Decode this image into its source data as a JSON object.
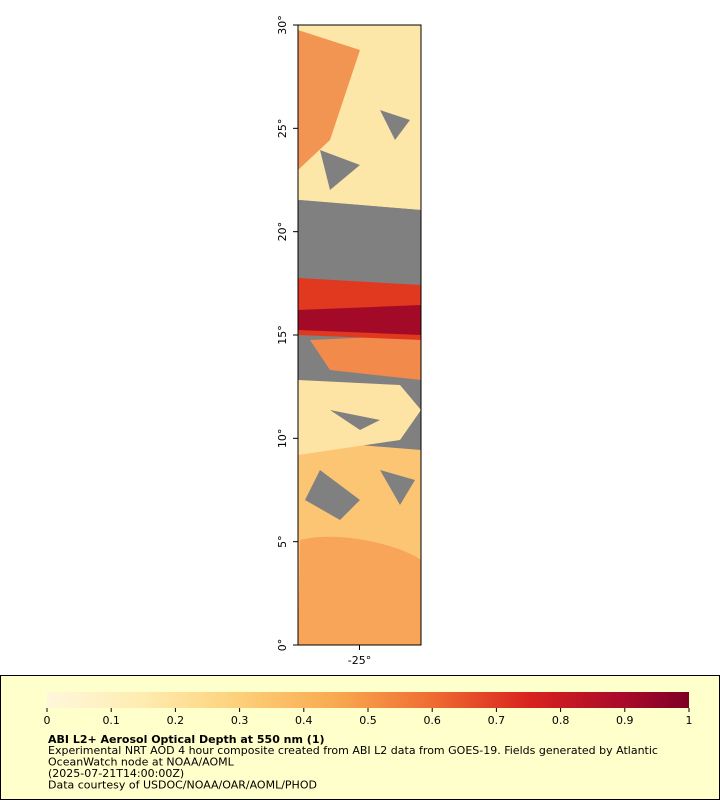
{
  "map": {
    "latlim": [
      0,
      30
    ],
    "lonlim": [
      -26.5,
      -23.5
    ],
    "lat_ticks": [
      {
        "value": 0,
        "label": "0°"
      },
      {
        "value": 5,
        "label": "5°"
      },
      {
        "value": 10,
        "label": "10°"
      },
      {
        "value": 15,
        "label": "15°"
      },
      {
        "value": 20,
        "label": "20°"
      },
      {
        "value": 25,
        "label": "25°"
      },
      {
        "value": 30,
        "label": "30°"
      }
    ],
    "lon_ticks": [
      {
        "value": -25,
        "label": "-25°"
      }
    ]
  },
  "colorbar": {
    "range": [
      0,
      1
    ],
    "ticks": [
      0,
      0.1,
      0.2,
      0.3,
      0.4,
      0.5,
      0.6,
      0.7,
      0.8,
      0.9,
      1
    ]
  },
  "legend": {
    "title": "ABI L2+ Aerosol Optical Depth at 550 nm (1)",
    "lines": [
      "Experimental NRT AOD 4 hour composite created from ABI L2 data from GOES-19. Fields generated by Atlantic",
      "OceanWatch node at NOAA/AOML",
      "(2025-07-21T14:00:00Z)",
      "Data courtesy of USDOC/NOAA/OAR/AOML/PHOD"
    ]
  }
}
